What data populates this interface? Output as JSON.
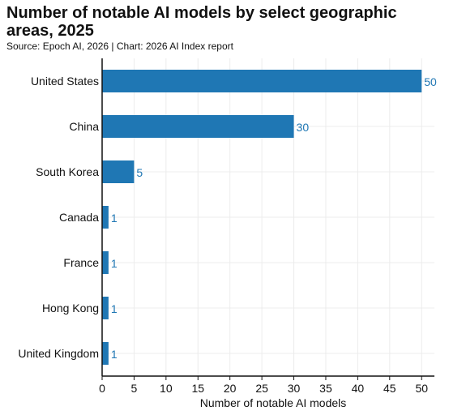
{
  "title": "Number of notable AI models by select geographic areas, 2025",
  "source": "Source: Epoch AI, 2026 | Chart: 2026 AI Index report",
  "colors": {
    "bar": "#1f77b4",
    "label": "#1f77b4",
    "grid": "#ececec",
    "axis": "#111111"
  },
  "chart_data": {
    "type": "bar",
    "orientation": "horizontal",
    "categories": [
      "United States",
      "China",
      "South Korea",
      "Canada",
      "France",
      "Hong Kong",
      "United Kingdom"
    ],
    "values": [
      50,
      30,
      5,
      1,
      1,
      1,
      1
    ],
    "xlabel": "Number of notable AI models",
    "ylabel": "",
    "xlim": [
      0,
      52
    ],
    "xticks": [
      0,
      5,
      10,
      15,
      20,
      25,
      30,
      35,
      40,
      45,
      50
    ],
    "grid": true,
    "data_labels": true
  }
}
